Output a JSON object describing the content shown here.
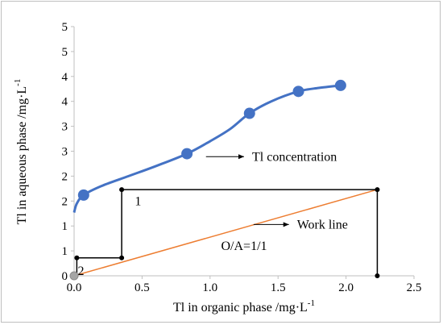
{
  "chart_data": {
    "type": "scatter",
    "xlabel": "Tl in organic phase /mg·L",
    "xlabel_sup": "-1",
    "ylabel": "Tl in aqueous phase /mg·L",
    "ylabel_sup": "-1",
    "xlim": [
      0,
      2.5
    ],
    "ylim": [
      0,
      5
    ],
    "x_ticks": [
      "0.0",
      "0.5",
      "1.0",
      "1.5",
      "2.0",
      "2.5"
    ],
    "y_ticks": [
      "0",
      "1",
      "1",
      "2",
      "2",
      "3",
      "3",
      "4",
      "4",
      "5",
      "5"
    ],
    "grid": false,
    "colors": {
      "concentration": "#4472c4",
      "work_line": "#ed7d31",
      "steps": "#000000",
      "origin_marker": "#a5a5a5"
    },
    "series": [
      {
        "key": "concentration",
        "points": [
          [
            0.07,
            1.62
          ],
          [
            0.83,
            2.45
          ],
          [
            1.29,
            3.26
          ],
          [
            1.65,
            3.7
          ],
          [
            1.96,
            3.82
          ]
        ],
        "curve": [
          [
            0.0,
            1.27
          ],
          [
            0.02,
            1.45
          ],
          [
            0.07,
            1.62
          ],
          [
            0.2,
            1.8
          ],
          [
            0.4,
            2.0
          ],
          [
            0.6,
            2.2
          ],
          [
            0.83,
            2.45
          ],
          [
            1.0,
            2.7
          ],
          [
            1.15,
            2.95
          ],
          [
            1.29,
            3.26
          ],
          [
            1.45,
            3.5
          ],
          [
            1.65,
            3.7
          ],
          [
            1.8,
            3.77
          ],
          [
            1.96,
            3.82
          ]
        ]
      },
      {
        "key": "work_line",
        "points": [
          [
            0.0,
            0.0
          ],
          [
            2.23,
            1.73
          ]
        ]
      },
      {
        "key": "steps",
        "points": [
          [
            2.23,
            0.0
          ],
          [
            2.23,
            1.73
          ],
          [
            0.35,
            1.73
          ],
          [
            0.35,
            0.36
          ],
          [
            0.02,
            0.36
          ],
          [
            0.02,
            0.0
          ]
        ]
      }
    ],
    "step_points": [
      [
        2.23,
        0.0
      ],
      [
        2.23,
        1.73
      ],
      [
        0.35,
        1.73
      ],
      [
        0.35,
        0.36
      ],
      [
        0.02,
        0.36
      ],
      [
        0.0,
        0.0
      ]
    ],
    "annotations": [
      {
        "text": "Tl concentration",
        "arrow_from": [
          0.97,
          2.39
        ],
        "arrow_to": [
          1.25,
          2.39
        ]
      },
      {
        "text": "Work line",
        "arrow_from": [
          1.32,
          1.03
        ],
        "arrow_to": [
          1.58,
          1.03
        ]
      },
      {
        "text": "O/A=1/1",
        "at": [
          1.25,
          0.6
        ]
      },
      {
        "text": "1",
        "at": [
          0.47,
          1.5
        ]
      },
      {
        "text": "2",
        "at": [
          0.05,
          0.1
        ]
      }
    ]
  }
}
